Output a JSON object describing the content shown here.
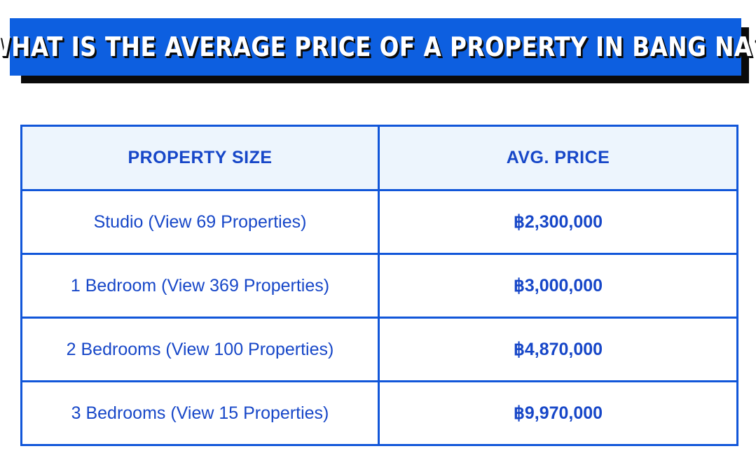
{
  "title": "WHAT IS THE AVERAGE PRICE OF A PROPERTY IN BANG NA?",
  "colors": {
    "accent": "#0d5fe0",
    "text": "#1747c8",
    "header_bg": "#edf5fd",
    "shadow": "#0a0a0a"
  },
  "table": {
    "headers": [
      "PROPERTY SIZE",
      "AVG. PRICE"
    ],
    "rows": [
      {
        "size": "Studio (View 69 Properties)",
        "price": "฿2,300,000"
      },
      {
        "size": "1 Bedroom (View 369 Properties)",
        "price": "฿3,000,000"
      },
      {
        "size": "2 Bedrooms (View 100 Properties)",
        "price": "฿4,870,000"
      },
      {
        "size": "3 Bedrooms (View 15 Properties)",
        "price": "฿9,970,000"
      }
    ]
  }
}
